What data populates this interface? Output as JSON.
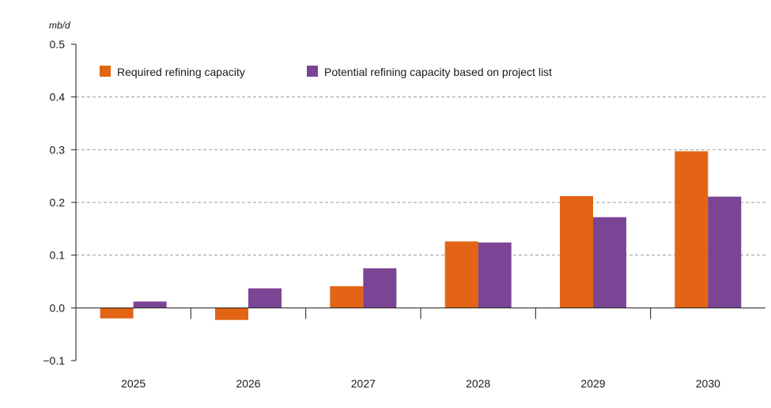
{
  "chart_data": {
    "type": "bar",
    "unit_label": "mb/d",
    "categories": [
      "2025",
      "2026",
      "2027",
      "2028",
      "2029",
      "2030"
    ],
    "series": [
      {
        "name": "Required refining capacity",
        "color": "#E36414",
        "values": [
          -0.02,
          -0.023,
          0.041,
          0.126,
          0.212,
          0.297
        ]
      },
      {
        "name": "Potential refining capacity based on project list",
        "color": "#7B4494",
        "values": [
          0.012,
          0.037,
          0.075,
          0.124,
          0.172,
          0.211
        ]
      }
    ],
    "ylim": [
      -0.1,
      0.5
    ],
    "yticks": [
      -0.1,
      0.0,
      0.1,
      0.2,
      0.3,
      0.4,
      0.5
    ],
    "ytick_labels": [
      "−0.1",
      "0.0",
      "0.1",
      "0.2",
      "0.3",
      "0.4",
      "0.5"
    ],
    "grid": true,
    "legend_position": "top-left"
  }
}
